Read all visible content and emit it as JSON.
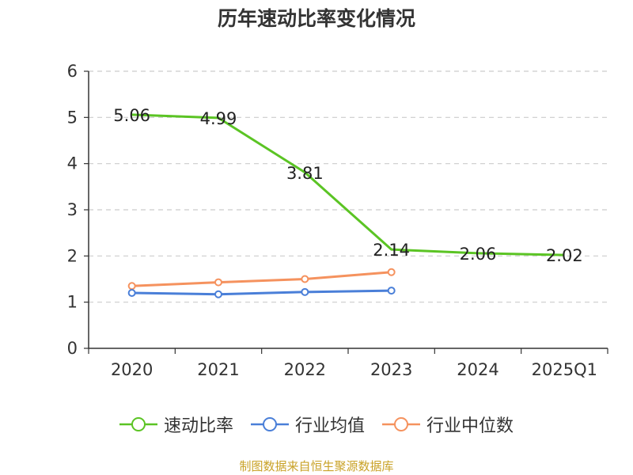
{
  "chart_data": {
    "type": "line",
    "title": "历年速动比率变化情况",
    "categories": [
      "2020",
      "2021",
      "2022",
      "2023",
      "2024",
      "2025Q1"
    ],
    "yticks": [
      "0",
      "1",
      "2",
      "3",
      "4",
      "5",
      "6"
    ],
    "ylim": [
      0,
      6
    ],
    "grid": true,
    "legend_position": "bottom",
    "series": [
      {
        "name": "速动比率",
        "color": "#5bc424",
        "values": [
          5.06,
          4.99,
          3.81,
          2.14,
          2.06,
          2.02
        ],
        "labels": [
          "5.06",
          "4.99",
          "3.81",
          "2.14",
          "2.06",
          "2.02"
        ]
      },
      {
        "name": "行业均值",
        "color": "#4a7fd8",
        "values": [
          1.2,
          1.17,
          1.22,
          1.25,
          null,
          null
        ]
      },
      {
        "name": "行业中位数",
        "color": "#f5925e",
        "values": [
          1.35,
          1.43,
          1.5,
          1.65,
          null,
          null
        ]
      }
    ]
  },
  "footer": {
    "source": "制图数据来自恒生聚源数据库"
  }
}
